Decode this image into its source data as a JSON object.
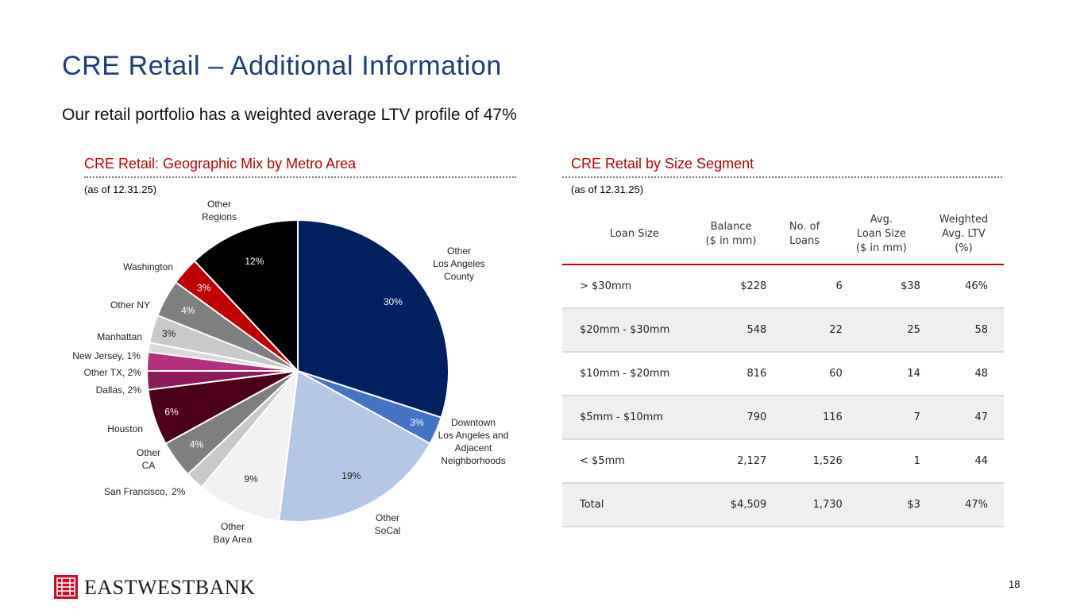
{
  "page": {
    "title": "CRE Retail – Additional Information",
    "subtitle": "Our retail portfolio has a weighted average LTV profile of 47%",
    "page_number": "18",
    "bank_name": "EASTWESTBANK"
  },
  "left_panel": {
    "heading": "CRE Retail: Geographic Mix by Metro Area",
    "as_of": "(as of 12.31.25)"
  },
  "right_panel": {
    "heading": "CRE Retail by Size Segment",
    "as_of": "(as of 12.31.25)"
  },
  "table": {
    "headers": [
      [
        "Loan Size"
      ],
      [
        "Balance",
        "($ in mm)"
      ],
      [
        "No. of",
        "Loans"
      ],
      [
        "Avg.",
        "Loan Size",
        "($ in mm)"
      ],
      [
        "Weighted",
        "Avg. LTV",
        "(%)"
      ]
    ],
    "rows": [
      [
        "> $30mm",
        "$228",
        "6",
        "$38",
        "46%"
      ],
      [
        "$20mm - $30mm",
        "548",
        "22",
        "25",
        "58"
      ],
      [
        "$10mm - $20mm",
        "816",
        "60",
        "14",
        "48"
      ],
      [
        "$5mm - $10mm",
        "790",
        "116",
        "7",
        "47"
      ],
      [
        "< $5mm",
        "2,127",
        "1,526",
        "1",
        "44"
      ],
      [
        "Total",
        "$4,509",
        "1,730",
        "$3",
        "47%"
      ]
    ]
  },
  "chart_data": {
    "type": "pie",
    "title": "CRE Retail: Geographic Mix by Metro Area",
    "start": "12 o'clock, clockwise",
    "slices": [
      {
        "name": "Other Los Angeles County",
        "label": [
          "Other",
          "Los Angeles",
          "County"
        ],
        "value": 30,
        "value_label": "30%",
        "color": "#002060",
        "value_text_color": "#ffffff"
      },
      {
        "name": "Downtown Los Angeles and Adjacent Neighborhoods",
        "label": [
          "Downtown",
          "Los Angeles and",
          "Adjacent",
          "Neighborhoods"
        ],
        "value": 3,
        "value_label": "3%",
        "color": "#4472c4",
        "value_text_color": "#ffffff"
      },
      {
        "name": "Other SoCal",
        "label": [
          "Other",
          "SoCal"
        ],
        "value": 19,
        "value_label": "19%",
        "color": "#b4c7e7",
        "value_text_color": "#222222"
      },
      {
        "name": "Other Bay Area",
        "label": [
          "Other",
          "Bay Area"
        ],
        "value": 9,
        "value_label": "9%",
        "color": "#f2f2f2",
        "value_text_color": "#222222"
      },
      {
        "name": "San Francisco",
        "label": [
          "San Francisco,"
        ],
        "value": 2,
        "value_label": "2%",
        "color": "#c9c9c9",
        "value_text_color": "#222222",
        "inline_label": true
      },
      {
        "name": "Other CA",
        "label": [
          "Other",
          "CA"
        ],
        "value": 4,
        "value_label": "4%",
        "color": "#7f7f7f",
        "value_text_color": "#ffffff"
      },
      {
        "name": "Houston",
        "label": [
          "Houston"
        ],
        "value": 6,
        "value_label": "6%",
        "color": "#4d0019",
        "value_text_color": "#ffffff"
      },
      {
        "name": "Dallas",
        "label": [
          "Dallas, 2%"
        ],
        "value": 2,
        "value_label": "",
        "color": "#8b1a5a",
        "value_text_color": "#ffffff"
      },
      {
        "name": "Other TX",
        "label": [
          "Other TX, 2%"
        ],
        "value": 2,
        "value_label": "",
        "color": "#b3307f",
        "value_text_color": "#ffffff"
      },
      {
        "name": "New Jersey",
        "label": [
          "New Jersey, 1%"
        ],
        "value": 1,
        "value_label": "",
        "color": "#d9d9d9",
        "value_text_color": "#222222"
      },
      {
        "name": "Manhattan",
        "label": [
          "Manhattan"
        ],
        "value": 3,
        "value_label": "3%",
        "color": "#c9c9c9",
        "value_text_color": "#222222"
      },
      {
        "name": "Other NY",
        "label": [
          "Other NY"
        ],
        "value": 4,
        "value_label": "4%",
        "color": "#7f7f7f",
        "value_text_color": "#ffffff"
      },
      {
        "name": "Washington",
        "label": [
          "Washington"
        ],
        "value": 3,
        "value_label": "3%",
        "color": "#c00000",
        "value_text_color": "#ffffff"
      },
      {
        "name": "Other Regions",
        "label": [
          "Other",
          "Regions"
        ],
        "value": 12,
        "value_label": "12%",
        "color": "#000000",
        "value_text_color": "#ffffff"
      }
    ]
  }
}
